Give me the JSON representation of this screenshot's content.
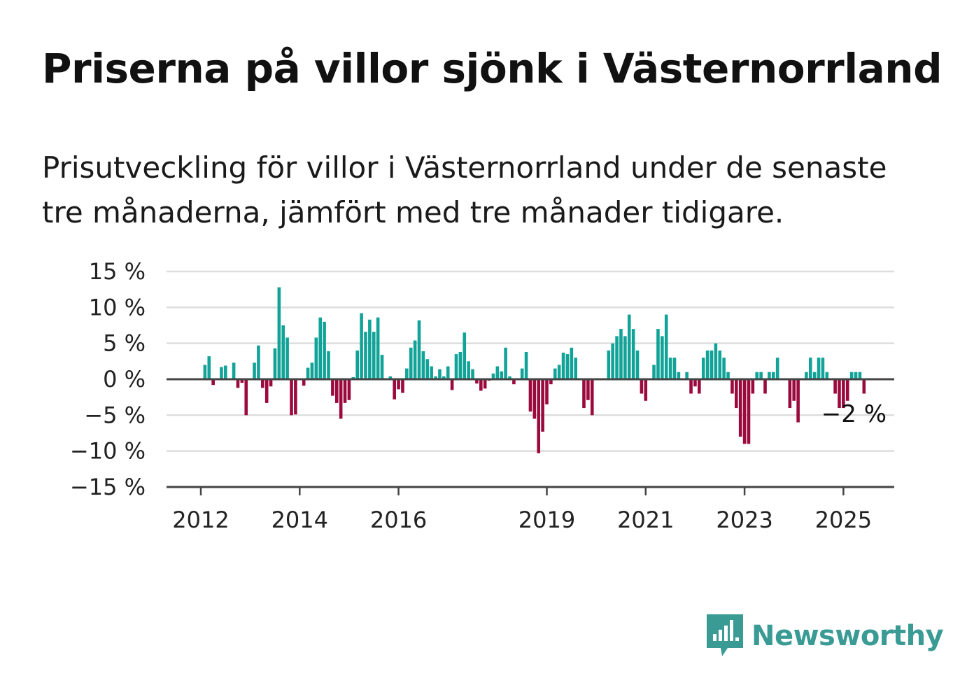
{
  "header": {
    "title": "Priserna på villor sjönk i Västernorrland",
    "subtitle": "Prisutveckling för villor i Västernorrland under de senaste tre månaderna, jämfört med tre månader tidigare."
  },
  "brand": {
    "name": "Newsworthy",
    "logo_icon": "bar-chart-speech-bubble-icon",
    "color": "#3a9a94"
  },
  "colors": {
    "positive": "#12a398",
    "negative": "#9b0a3d",
    "grid": "#dddddd",
    "axis": "#444444"
  },
  "chart_data": {
    "type": "bar",
    "title": "",
    "xlabel": "",
    "ylabel": "",
    "ylim": [
      -15,
      15
    ],
    "yticks": [
      15,
      10,
      5,
      0,
      -5,
      -10,
      -15
    ],
    "ytick_labels": [
      "15 %",
      "10 %",
      "5 %",
      "0 %",
      "−5 %",
      "−10 %",
      "−15 %"
    ],
    "xtick_labels": [
      {
        "label": "2012",
        "year": 2012
      },
      {
        "label": "2014",
        "year": 2014
      },
      {
        "label": "2016",
        "year": 2016
      },
      {
        "label": "2019",
        "year": 2019
      },
      {
        "label": "2021",
        "year": 2021
      },
      {
        "label": "2023",
        "year": 2023
      },
      {
        "label": "2025",
        "year": 2025
      }
    ],
    "end_label": "−2 %",
    "x_start": "2012-01",
    "x_end": "2025-12",
    "series": [
      {
        "values": [
          0,
          2.0,
          3.2,
          -0.8,
          0,
          1.7,
          1.9,
          0,
          2.3,
          -1.2,
          -0.5,
          -5.0,
          0,
          2.3,
          4.7,
          -1.2,
          -3.3,
          -1.0,
          4.3,
          12.8,
          7.5,
          5.8,
          -5.0,
          -4.9,
          0,
          -0.9,
          1.6,
          2.3,
          5.8,
          8.6,
          8.0,
          3.9,
          -2.3,
          -3.3,
          -5.5,
          -3.3,
          -2.9,
          0.3,
          4.0,
          9.2,
          6.6,
          8.3,
          6.6,
          8.6,
          3.4,
          0,
          0.4,
          -2.8,
          -1.4,
          -1.9,
          1.5,
          4.4,
          5.4,
          8.2,
          3.9,
          2.8,
          1.8,
          0.4,
          1.4,
          0.4,
          1.8,
          -1.5,
          3.5,
          3.8,
          6.5,
          2.5,
          1.4,
          -0.6,
          -1.6,
          -1.3,
          -0.2,
          0.8,
          1.8,
          1.1,
          4.4,
          0.4,
          -0.7,
          0,
          1.5,
          3.8,
          -4.5,
          -5.5,
          -10.3,
          -7.3,
          -3.5,
          -0.7,
          1.5,
          2.0,
          3.7,
          3.5,
          4.4,
          3.0,
          0,
          -4.0,
          -2.9,
          -5.0,
          0,
          0,
          0,
          4.0,
          5.0,
          6.0,
          7.0,
          6.0,
          9.0,
          7.0,
          4.0,
          -2.0,
          -3.0,
          0,
          2.0,
          7.0,
          6.0,
          9.0,
          3.0,
          3.0,
          1.0,
          0,
          1.0,
          -2.0,
          -1.0,
          -2.0,
          3.0,
          4.0,
          4.0,
          5.0,
          4.0,
          3.0,
          1.0,
          -2.0,
          -4.0,
          -8.0,
          -9.0,
          -9.0,
          -2.0,
          1.0,
          1.0,
          -2.0,
          1.0,
          1.0,
          3.0,
          0,
          0,
          -4.0,
          -3.0,
          -6.0,
          0,
          1.0,
          3.0,
          1.0,
          3.0,
          3.0,
          1.0,
          0,
          -2.0,
          -4.0,
          -4.0,
          -3.0,
          1.0,
          1.0,
          1.0,
          -2.0
        ]
      }
    ]
  }
}
